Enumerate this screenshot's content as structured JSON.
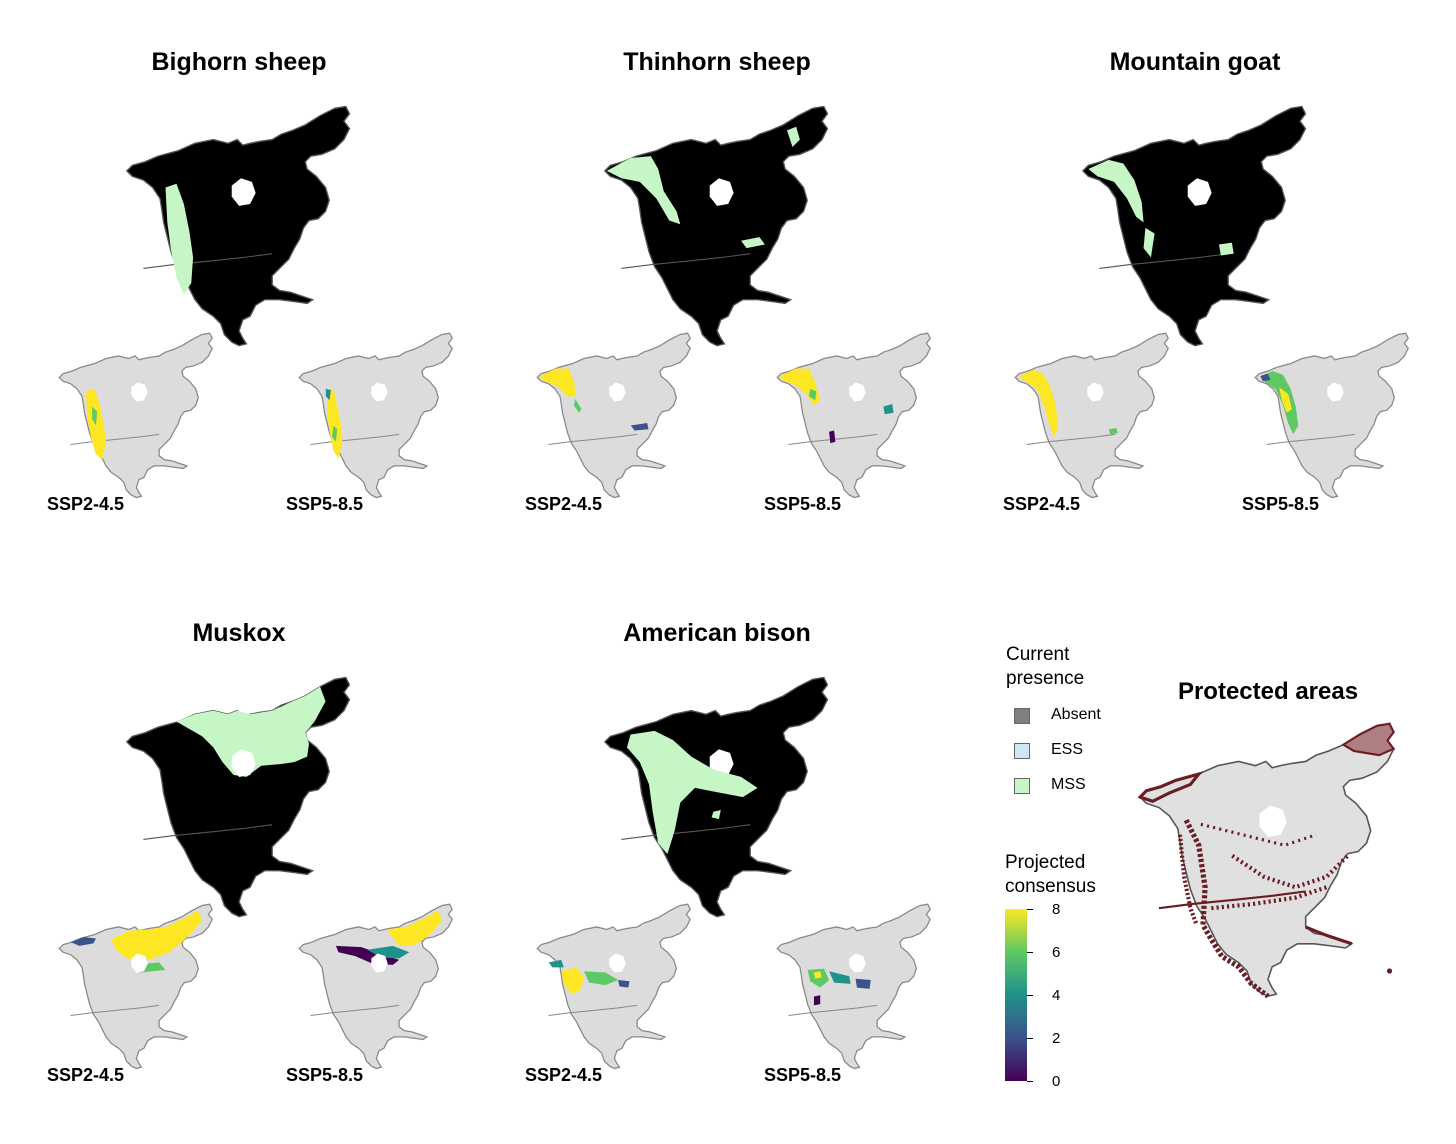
{
  "panels": [
    {
      "title": "Bighorn sheep",
      "scenario_left": "SSP2-4.5",
      "scenario_right": "SSP5-8.5"
    },
    {
      "title": "Thinhorn sheep",
      "scenario_left": "SSP2-4.5",
      "scenario_right": "SSP5-8.5"
    },
    {
      "title": "Mountain goat",
      "scenario_left": "SSP2-4.5",
      "scenario_right": "SSP5-8.5"
    },
    {
      "title": "Muskox",
      "scenario_left": "SSP2-4.5",
      "scenario_right": "SSP5-8.5"
    },
    {
      "title": "American bison",
      "scenario_left": "SSP2-4.5",
      "scenario_right": "SSP5-8.5"
    }
  ],
  "legend": {
    "presence_title_1": "Current",
    "presence_title_2": "presence",
    "items": [
      {
        "label": "Absent",
        "color": "#808080"
      },
      {
        "label": "ESS",
        "color": "#cce8f0"
      },
      {
        "label": "MSS",
        "color": "#c6f5c6"
      }
    ],
    "consensus_title_1": "Projected",
    "consensus_title_2": "consensus",
    "ticks": [
      "0",
      "2",
      "4",
      "6",
      "8"
    ]
  },
  "protected_areas": {
    "title": "Protected areas",
    "fill": "#e0e0e0",
    "area_color": "#6b1d22"
  },
  "colors": {
    "continent_current": "#000000",
    "continent_projection": "#dcdcdc",
    "mss": "#c6f5c6",
    "viridis": [
      "#440154",
      "#3b528b",
      "#21918c",
      "#5ec962",
      "#fde725"
    ]
  }
}
